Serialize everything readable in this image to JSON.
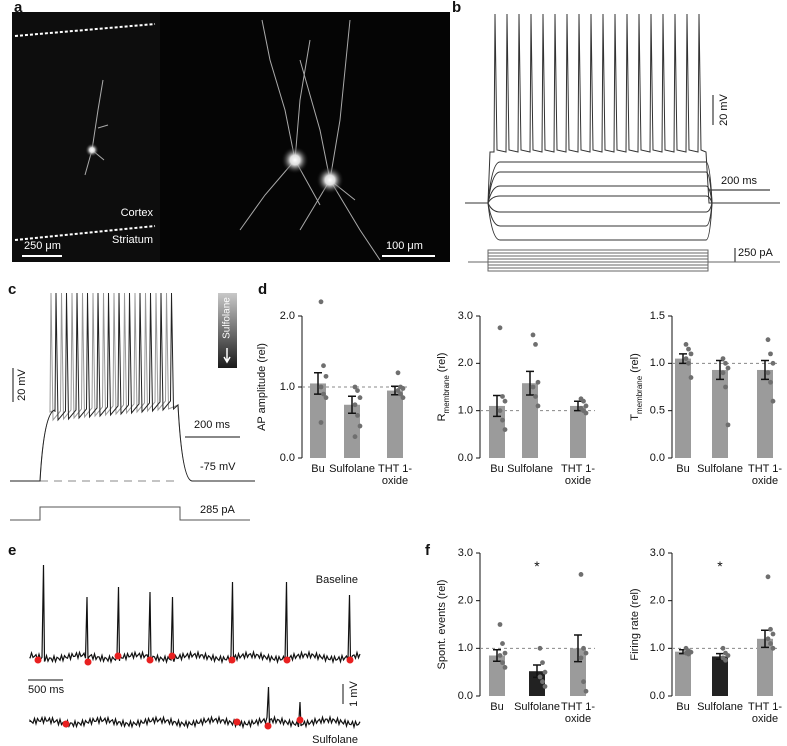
{
  "panel_a": {
    "letter": "a",
    "cortex": "Cortex",
    "striatum": "Striatum",
    "scale_left": "250 μm",
    "scale_right": "100 μm"
  },
  "panel_b": {
    "letter": "b",
    "scale_v": "20 mV",
    "scale_t": "200 ms",
    "scale_i": "250 pA"
  },
  "panel_c": {
    "letter": "c",
    "scale_v": "20 mV",
    "scale_t": "200 ms",
    "rest": "-75 mV",
    "current": "285 pA",
    "drug": "Sulfolane"
  },
  "panel_d": {
    "letter": "d"
  },
  "panel_e": {
    "letter": "e",
    "baseline": "Baseline",
    "drug": "Sulfolane",
    "scale_t": "500 ms",
    "scale_v": "1 mV"
  },
  "panel_f": {
    "letter": "f"
  },
  "chart_data": [
    {
      "type": "bar",
      "ylabel": "AP amplitude (rel)",
      "categories": [
        "Bu",
        "Sulfolane",
        "THT 1-oxide"
      ],
      "values": [
        1.05,
        0.75,
        0.95
      ],
      "errors": [
        0.15,
        0.12,
        0.06
      ],
      "colors": [
        "#9b9b9b",
        "#9b9b9b",
        "#9b9b9b"
      ],
      "points": [
        [
          2.2,
          1.3,
          1.15,
          1.0,
          0.9,
          0.85,
          0.5
        ],
        [
          1.0,
          0.95,
          0.85,
          0.75,
          0.6,
          0.45,
          0.3
        ],
        [
          1.2,
          1.0,
          0.98,
          0.95,
          0.9,
          0.85
        ]
      ],
      "refline": 1,
      "ylim": [
        0,
        2
      ],
      "yticks": [
        {
          "value": 0,
          "label": "0.0"
        },
        {
          "value": 1,
          "label": "1.0"
        },
        {
          "value": 2,
          "label": "2.0"
        }
      ]
    },
    {
      "type": "bar",
      "ylabel": [
        "R",
        "membrane",
        "(rel)"
      ],
      "categories": [
        "Bu",
        "Sulfolane",
        "THT 1-oxide"
      ],
      "values": [
        1.1,
        1.58,
        1.1
      ],
      "errors": [
        0.22,
        0.25,
        0.1
      ],
      "colors": [
        "#9b9b9b",
        "#9b9b9b",
        "#9b9b9b"
      ],
      "points": [
        [
          2.75,
          1.3,
          1.2,
          1.0,
          0.8,
          0.6
        ],
        [
          2.6,
          2.4,
          1.6,
          1.5,
          1.3,
          1.1
        ],
        [
          1.25,
          1.2,
          1.1,
          1.05,
          1.0,
          0.95
        ]
      ],
      "refline": 1,
      "ylim": [
        0,
        3
      ],
      "yticks": [
        {
          "value": 0,
          "label": "0.0"
        },
        {
          "value": 1,
          "label": "1.0"
        },
        {
          "value": 2,
          "label": "2.0"
        },
        {
          "value": 3,
          "label": "3.0"
        }
      ]
    },
    {
      "type": "bar",
      "ylabel": [
        "T",
        "membrane",
        "(rel)"
      ],
      "categories": [
        "Bu",
        "Sulfolane",
        "THT 1-oxide"
      ],
      "values": [
        1.05,
        0.93,
        0.93
      ],
      "errors": [
        0.05,
        0.1,
        0.1
      ],
      "colors": [
        "#9b9b9b",
        "#9b9b9b",
        "#9b9b9b"
      ],
      "points": [
        [
          1.2,
          1.15,
          1.1,
          1.05,
          1.0,
          0.85
        ],
        [
          1.05,
          1.0,
          0.95,
          0.9,
          0.75,
          0.35
        ],
        [
          1.25,
          1.1,
          1.0,
          0.9,
          0.8,
          0.6
        ]
      ],
      "refline": 1,
      "ylim": [
        0,
        1.5
      ],
      "yticks": [
        {
          "value": 0,
          "label": "0.0"
        },
        0.5,
        {
          "value": 1,
          "label": "1.0"
        },
        1.5
      ]
    },
    {
      "type": "bar",
      "ylabel": "Spont. events (rel)",
      "categories": [
        "Bu",
        "Sulfolane",
        "THT 1-oxide"
      ],
      "values": [
        0.85,
        0.52,
        1.0
      ],
      "errors": [
        0.12,
        0.13,
        0.28
      ],
      "colors": [
        "#9b9b9b",
        "#222222",
        "#9b9b9b"
      ],
      "points": [
        [
          1.5,
          1.1,
          0.9,
          0.85,
          0.7,
          0.6
        ],
        [
          1.0,
          0.7,
          0.5,
          0.4,
          0.3,
          0.2
        ],
        [
          2.55,
          1.0,
          0.9,
          0.8,
          0.3,
          0.1
        ]
      ],
      "refline": 1,
      "ylim": [
        0,
        3
      ],
      "yticks": [
        {
          "value": 0,
          "label": "0.0"
        },
        {
          "value": 1,
          "label": "1.0"
        },
        {
          "value": 2,
          "label": "2.0"
        },
        {
          "value": 3,
          "label": "3.0"
        }
      ],
      "annotations": [
        {
          "text": "*",
          "category": 1,
          "value": 2.7
        }
      ]
    },
    {
      "type": "bar",
      "ylabel": "Firing rate (rel)",
      "categories": [
        "Bu",
        "Sulfolane",
        "THT 1-oxide"
      ],
      "values": [
        0.93,
        0.83,
        1.2
      ],
      "errors": [
        0.04,
        0.06,
        0.18
      ],
      "colors": [
        "#9b9b9b",
        "#222222",
        "#9b9b9b"
      ],
      "points": [
        [
          1.0,
          0.95,
          0.92,
          0.9,
          0.88
        ],
        [
          1.0,
          0.9,
          0.85,
          0.8,
          0.75
        ],
        [
          2.5,
          1.4,
          1.3,
          1.2,
          1.1,
          1.0
        ]
      ],
      "refline": 1,
      "ylim": [
        0,
        3
      ],
      "yticks": [
        {
          "value": 0,
          "label": "0.0"
        },
        {
          "value": 1,
          "label": "1.0"
        },
        {
          "value": 2,
          "label": "2.0"
        },
        {
          "value": 3,
          "label": "3.0"
        }
      ],
      "annotations": [
        {
          "text": "*",
          "category": 1,
          "value": 2.7
        }
      ]
    }
  ]
}
